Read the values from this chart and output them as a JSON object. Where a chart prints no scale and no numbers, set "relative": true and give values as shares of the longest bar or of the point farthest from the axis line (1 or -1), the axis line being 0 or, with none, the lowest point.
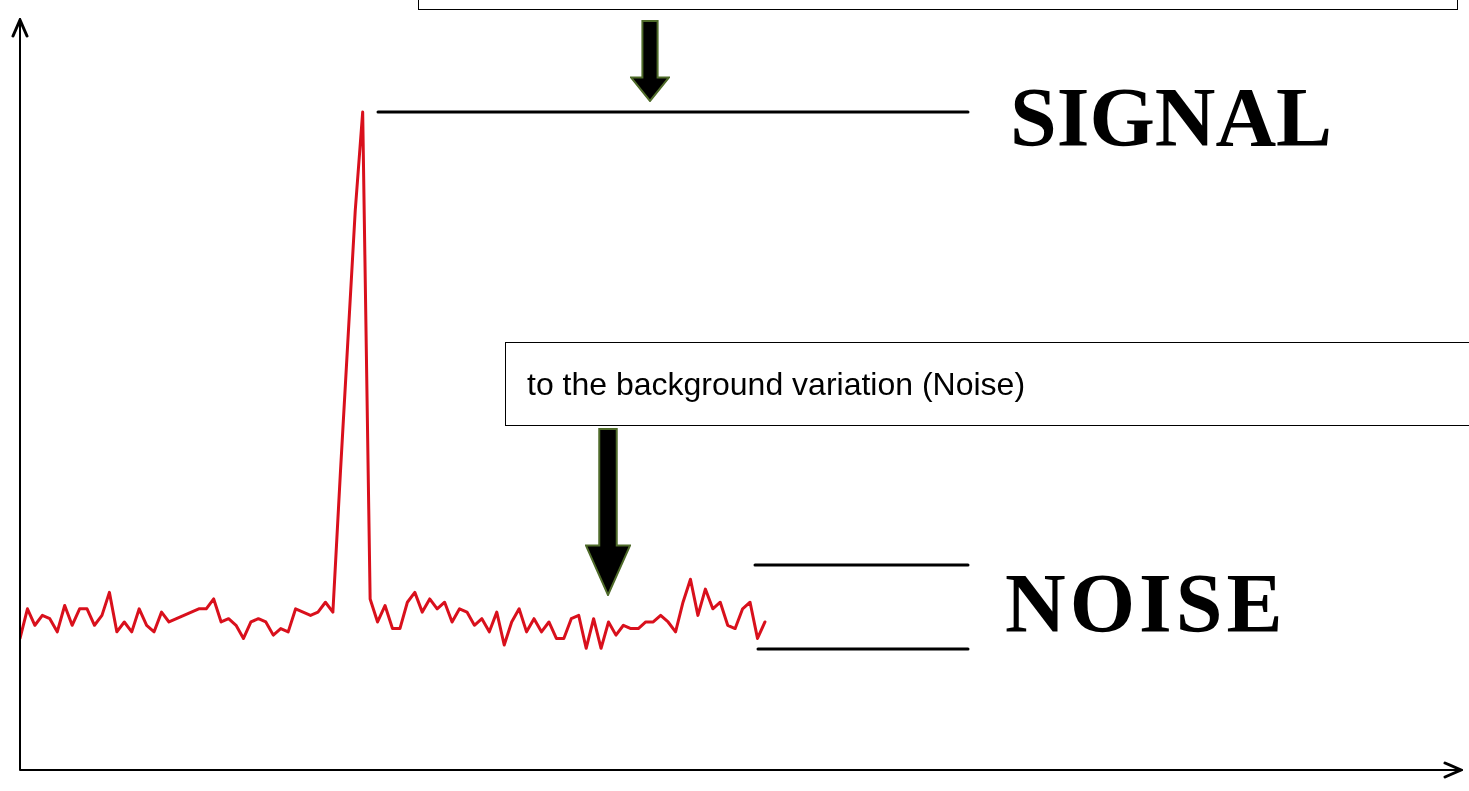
{
  "chart_data": {
    "type": "line",
    "relative": true,
    "categories": [
      null,
      null,
      null,
      null,
      null,
      null,
      null,
      null,
      null,
      null,
      null,
      null,
      null,
      null,
      null,
      null,
      null,
      null,
      null,
      null,
      null,
      null,
      null,
      null,
      null,
      null,
      null,
      null,
      null,
      null,
      null,
      null,
      null,
      null,
      null,
      null,
      null,
      null,
      null,
      null,
      null,
      null,
      null,
      null,
      null,
      null,
      null,
      null,
      null,
      null,
      null,
      null,
      null,
      null,
      null,
      null,
      null,
      null,
      null,
      null,
      null,
      null,
      null,
      null,
      null,
      null,
      null,
      null,
      null,
      null,
      null,
      null,
      null,
      null,
      null,
      null,
      null,
      null,
      null,
      null,
      null,
      null,
      null,
      null,
      null,
      null,
      null,
      null,
      null,
      null,
      null,
      null,
      null,
      null,
      null,
      null,
      null,
      null,
      null,
      null,
      null
    ],
    "series": [
      {
        "color": "#d9101c",
        "values": [
          0.2,
          0.245,
          0.22,
          0.235,
          0.23,
          0.21,
          0.25,
          0.22,
          0.245,
          0.245,
          0.22,
          0.235,
          0.27,
          0.21,
          0.225,
          0.21,
          0.245,
          0.22,
          0.21,
          0.24,
          0.225,
          0.23,
          0.235,
          0.24,
          0.245,
          0.245,
          0.26,
          0.225,
          0.23,
          0.22,
          0.2,
          0.225,
          0.23,
          0.225,
          0.205,
          0.215,
          0.21,
          0.245,
          0.24,
          0.235,
          0.24,
          0.255,
          0.24,
          0.45,
          0.65,
          0.85,
          1,
          0.26,
          0.225,
          0.25,
          0.215,
          0.215,
          0.255,
          0.27,
          0.24,
          0.26,
          0.245,
          0.255,
          0.225,
          0.245,
          0.24,
          0.22,
          0.23,
          0.21,
          0.24,
          0.19,
          0.225,
          0.245,
          0.21,
          0.23,
          0.21,
          0.225,
          0.2,
          0.2,
          0.23,
          0.235,
          0.185,
          0.23,
          0.185,
          0.225,
          0.205,
          0.22,
          0.215,
          0.215,
          0.225,
          0.225,
          0.235,
          0.225,
          0.21,
          0.255,
          0.29,
          0.235,
          0.275,
          0.245,
          0.255,
          0.22,
          0.215,
          0.245,
          0.255,
          0.2,
          0.225
        ]
      }
    ],
    "ref_lines": [
      {
        "axis": "y",
        "value": 1,
        "label": "SIGNAL"
      }
    ],
    "annotations": [
      "to the background variation (Noise)",
      "NOISE"
    ],
    "legend": false,
    "marker": "none",
    "line_style": "solid"
  }
}
